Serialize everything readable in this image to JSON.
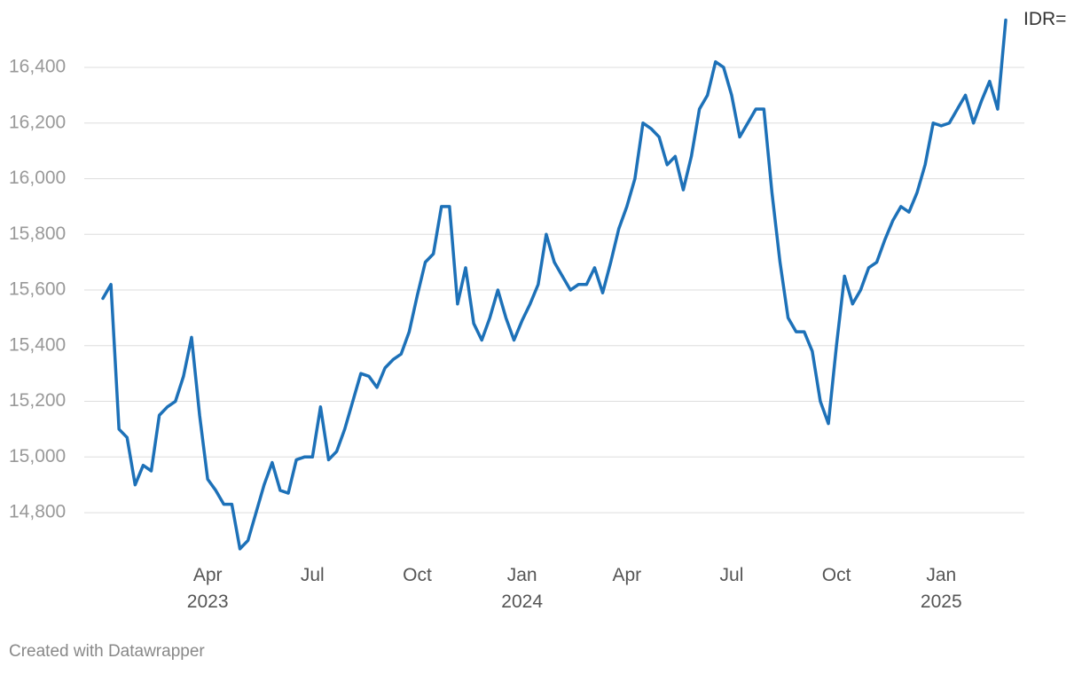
{
  "chart_data": {
    "type": "line",
    "categories": [
      null,
      null,
      null,
      null,
      null,
      null,
      null,
      null,
      null,
      null,
      null,
      null,
      null,
      "Apr\n2023",
      null,
      null,
      null,
      null,
      null,
      null,
      null,
      null,
      null,
      null,
      null,
      null,
      "Jul",
      null,
      null,
      null,
      null,
      null,
      null,
      null,
      null,
      null,
      null,
      null,
      null,
      "Oct",
      null,
      null,
      null,
      null,
      null,
      null,
      null,
      null,
      null,
      null,
      null,
      null,
      "Jan\n2024",
      null,
      null,
      null,
      null,
      null,
      null,
      null,
      null,
      null,
      null,
      null,
      null,
      "Apr",
      null,
      null,
      null,
      null,
      null,
      null,
      null,
      null,
      null,
      null,
      null,
      null,
      "Jul",
      null,
      null,
      null,
      null,
      null,
      null,
      null,
      null,
      null,
      null,
      null,
      null,
      "Oct",
      null,
      null,
      null,
      null,
      null,
      null,
      null,
      null,
      null,
      null,
      null,
      null,
      "Jan\n2025",
      null,
      null,
      null,
      null,
      null,
      null,
      null,
      null
    ],
    "series": [
      {
        "name": "IDR=",
        "color": "#1d71b8",
        "values": [
          15570,
          15620,
          15100,
          15070,
          14900,
          14970,
          14950,
          15150,
          15180,
          15200,
          15290,
          15430,
          15150,
          14920,
          14880,
          14830,
          14830,
          14670,
          14700,
          14800,
          14900,
          14980,
          14880,
          14870,
          14990,
          15000,
          15000,
          15180,
          14990,
          15020,
          15100,
          15200,
          15300,
          15290,
          15250,
          15320,
          15350,
          15370,
          15450,
          15580,
          15700,
          15730,
          15900,
          15900,
          15550,
          15680,
          15480,
          15420,
          15500,
          15600,
          15500,
          15420,
          15490,
          15550,
          15620,
          15800,
          15700,
          15650,
          15600,
          15620,
          15620,
          15680,
          15590,
          15700,
          15820,
          15900,
          16000,
          16200,
          16180,
          16150,
          16050,
          16080,
          15960,
          16080,
          16250,
          16300,
          16420,
          16400,
          16300,
          16150,
          16200,
          16250,
          16250,
          15950,
          15700,
          15500,
          15450,
          15450,
          15380,
          15200,
          15120,
          15400,
          15650,
          15550,
          15600,
          15680,
          15700,
          15780,
          15850,
          15900,
          15880,
          15950,
          16050,
          16200,
          16190,
          16200,
          16250,
          16300,
          16200,
          16280,
          16350,
          16250,
          16570
        ]
      }
    ],
    "ylim": [
      14660,
      16580
    ],
    "yticks": [
      {
        "value": 14800,
        "label": "14,800"
      },
      {
        "value": 15000,
        "label": "15,000"
      },
      {
        "value": 15200,
        "label": "15,200"
      },
      {
        "value": 15400,
        "label": "15,400"
      },
      {
        "value": 15600,
        "label": "15,600"
      },
      {
        "value": 15800,
        "label": "15,800"
      },
      {
        "value": 16000,
        "label": "16,000"
      },
      {
        "value": 16200,
        "label": "16,200"
      },
      {
        "value": 16400,
        "label": "16,400"
      }
    ],
    "grid": true,
    "footer": "Created with Datawrapper"
  }
}
